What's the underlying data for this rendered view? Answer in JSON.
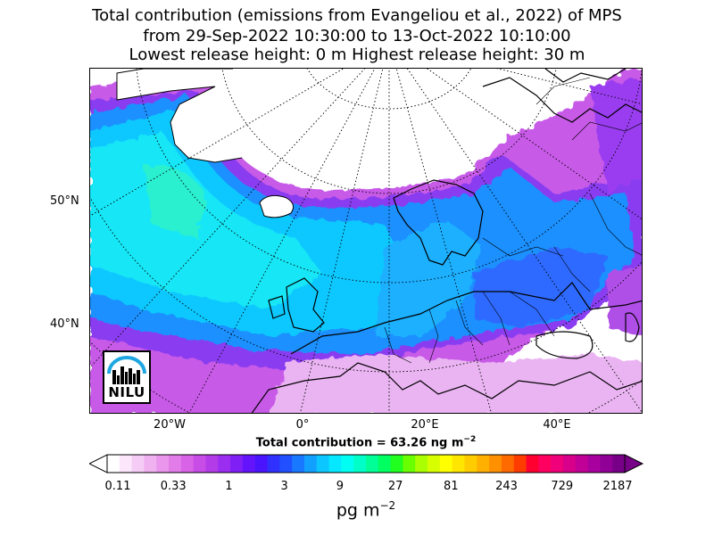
{
  "title": {
    "line1": "Total contribution (emissions from Evangeliou et al., 2022) of MPS",
    "line2": "from 29-Sep-2022 10:30:00 to 13-Oct-2022 10:10:00",
    "line3": "Lowest release height: 0 m      Highest release height: 30 m"
  },
  "map": {
    "lat_labels": [
      "50°N",
      "40°N"
    ],
    "lon_labels": [
      "20°W",
      "0°",
      "20°E",
      "40°E"
    ]
  },
  "logo": {
    "text": "NILU",
    "accent_color": "#1ea7e1"
  },
  "subtitle": "Total contribution = 63.26 ng m",
  "subtitle_exp": "−2",
  "colorbar": {
    "tick_labels": [
      "0.11",
      "0.33",
      "1",
      "3",
      "9",
      "27",
      "81",
      "243",
      "729",
      "2187"
    ],
    "unit_base": "pg m",
    "unit_exp": "−2",
    "colors": [
      "#ffffff",
      "#fbe6fb",
      "#f5ccf5",
      "#efb1f0",
      "#e996ec",
      "#e27ce8",
      "#d963e6",
      "#c84ce6",
      "#b43ce8",
      "#9a2df0",
      "#7f1ff5",
      "#6414fb",
      "#4a14ff",
      "#3030ff",
      "#2050ff",
      "#1878ff",
      "#12a0ff",
      "#0cc6ff",
      "#06e8ff",
      "#00fff2",
      "#00ffc8",
      "#00ff96",
      "#00ff60",
      "#20ff20",
      "#6aff00",
      "#aaff00",
      "#d8ff00",
      "#ffff00",
      "#ffe600",
      "#ffcc00",
      "#ffb000",
      "#ff9000",
      "#ff6a00",
      "#ff3c00",
      "#ff0030",
      "#ff0060",
      "#f0007a",
      "#d8008a",
      "#c00096",
      "#a8009e",
      "#900096",
      "#780088"
    ]
  }
}
